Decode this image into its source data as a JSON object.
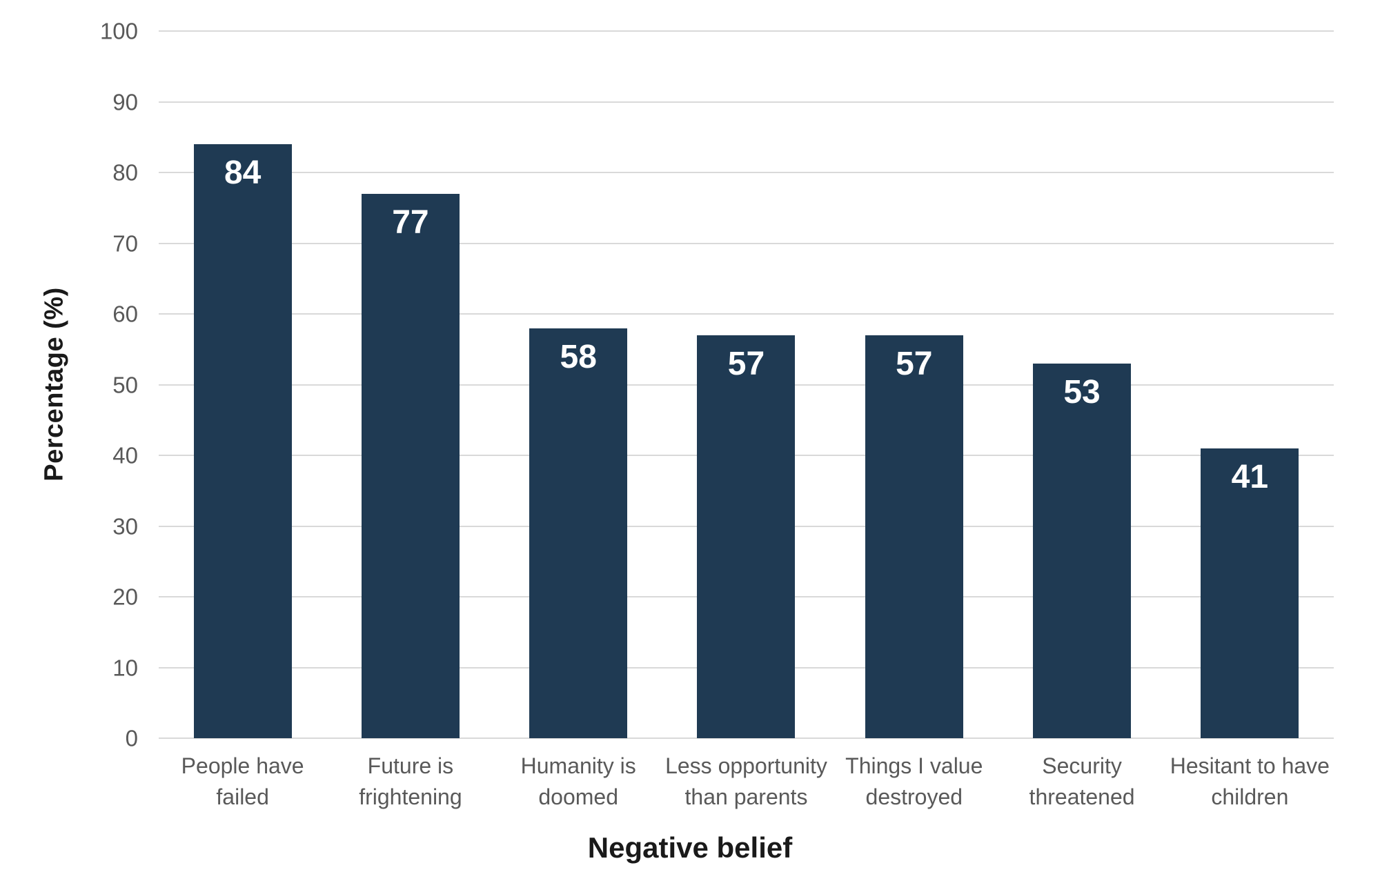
{
  "chart_data": {
    "type": "bar",
    "title": "",
    "xlabel": "Negative belief",
    "ylabel": "Percentage (%)",
    "categories": [
      "People have failed",
      "Future is frightening",
      "Humanity is doomed",
      "Less opportunity than parents",
      "Things I value destroyed",
      "Security threatened",
      "Hesitant to have children"
    ],
    "category_lines": [
      [
        "People have",
        "failed"
      ],
      [
        "Future is",
        "frightening"
      ],
      [
        "Humanity is",
        "doomed"
      ],
      [
        "Less opportunity",
        "than parents"
      ],
      [
        "Things I value",
        "destroyed"
      ],
      [
        "Security",
        "threatened"
      ],
      [
        "Hesitant to have",
        "children"
      ]
    ],
    "values": [
      84,
      77,
      58,
      57,
      57,
      53,
      41
    ],
    "ylim": [
      0,
      100
    ],
    "ytick_step": 10,
    "ytick_labels": [
      "0",
      "10",
      "20",
      "30",
      "40",
      "50",
      "60",
      "70",
      "80",
      "90",
      "100"
    ],
    "grid": "horizontal",
    "legend": "none",
    "colors": {
      "background": "#ffffff",
      "bar": "#1f3a53",
      "gridline": "#d9d9d9",
      "tick_label": "#595959",
      "category_label": "#595959",
      "axis_title": "#1a1a1a",
      "value_label": "#ffffff"
    }
  }
}
